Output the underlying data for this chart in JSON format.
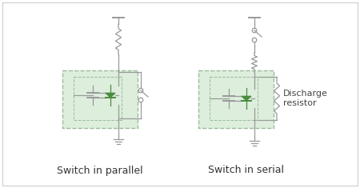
{
  "bg_color": "#f5f5f5",
  "border_color": "#cccccc",
  "line_color": "#999999",
  "green_fill": "#ddeedd",
  "green_triangle": "#4a8c3f",
  "label1": "Switch in parallel",
  "label2": "Switch in serial",
  "discharge_label": "Discharge\nresistor",
  "label_fontsize": 9,
  "annotation_fontsize": 8
}
